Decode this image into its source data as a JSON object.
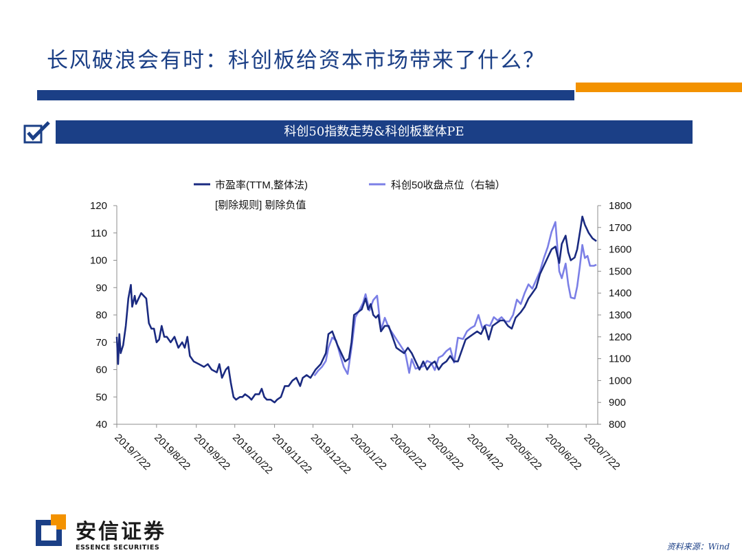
{
  "slide": {
    "title": "长风破浪会有时：科创板给资本市场带来了什么？",
    "subtitle": "科创50指数走势&科创板整体PE",
    "source": "资料来源：Wind",
    "brand_cn": "安信证券",
    "brand_en": "ESSENCE SECURITIES"
  },
  "colors": {
    "brand_blue": "#1b3f86",
    "accent_orange": "#f39200",
    "pe_series": "#1a2a80",
    "index_series": "#7b7fe6"
  },
  "chart_data": {
    "type": "line",
    "legend": {
      "placement": "top",
      "series1": "市盈率(TTM,整体法)",
      "series1_note": "[剔除规则] 剔除负值",
      "series2": "科创50收盘点位（右轴）"
    },
    "x_tick_labels": [
      "2019/7/22",
      "2019/8/22",
      "2019/9/22",
      "2019/10/22",
      "2019/11/22",
      "2019/12/22",
      "2020/1/22",
      "2020/2/22",
      "2020/3/22",
      "2020/4/22",
      "2020/5/22",
      "2020/6/22",
      "2020/7/22"
    ],
    "xlim": [
      "2019-07-22",
      "2020-07-31"
    ],
    "y_left": {
      "ylim": [
        40,
        120
      ],
      "ticks": [
        "120",
        "110",
        "100",
        "90",
        "80",
        "70",
        "60",
        "50",
        "40"
      ]
    },
    "y_right": {
      "ylim": [
        800,
        1800
      ],
      "ticks": [
        "1800",
        "1700",
        "1600",
        "1500",
        "1400",
        "1300",
        "1200",
        "1100",
        "1000",
        "900",
        "800"
      ]
    },
    "grid": false,
    "series": [
      {
        "axis": "left",
        "points": [
          [
            "2019-07-22",
            72
          ],
          [
            "2019-07-23",
            62
          ],
          [
            "2019-07-24",
            73
          ],
          [
            "2019-07-25",
            66
          ],
          [
            "2019-07-27",
            69
          ],
          [
            "2019-07-29",
            76
          ],
          [
            "2019-07-31",
            86
          ],
          [
            "2019-08-02",
            91
          ],
          [
            "2019-08-03",
            83
          ],
          [
            "2019-08-05",
            87
          ],
          [
            "2019-08-06",
            84
          ],
          [
            "2019-08-08",
            86
          ],
          [
            "2019-08-10",
            88
          ],
          [
            "2019-08-12",
            87
          ],
          [
            "2019-08-14",
            86
          ],
          [
            "2019-08-16",
            77
          ],
          [
            "2019-08-18",
            75
          ],
          [
            "2019-08-20",
            75
          ],
          [
            "2019-08-22",
            70
          ],
          [
            "2019-08-24",
            71
          ],
          [
            "2019-08-26",
            76
          ],
          [
            "2019-08-28",
            72
          ],
          [
            "2019-08-30",
            72
          ],
          [
            "2019-09-02",
            70
          ],
          [
            "2019-09-05",
            72
          ],
          [
            "2019-09-08",
            68
          ],
          [
            "2019-09-11",
            70
          ],
          [
            "2019-09-13",
            68
          ],
          [
            "2019-09-15",
            72
          ],
          [
            "2019-09-17",
            65
          ],
          [
            "2019-09-20",
            63
          ],
          [
            "2019-09-24",
            62
          ],
          [
            "2019-09-28",
            61
          ],
          [
            "2019-10-01",
            62
          ],
          [
            "2019-10-04",
            60
          ],
          [
            "2019-10-08",
            59
          ],
          [
            "2019-10-10",
            62
          ],
          [
            "2019-10-12",
            57
          ],
          [
            "2019-10-15",
            60
          ],
          [
            "2019-10-17",
            61
          ],
          [
            "2019-10-19",
            55
          ],
          [
            "2019-10-21",
            50
          ],
          [
            "2019-10-23",
            49
          ],
          [
            "2019-10-26",
            50
          ],
          [
            "2019-10-28",
            50
          ],
          [
            "2019-10-30",
            51
          ],
          [
            "2019-11-02",
            50
          ],
          [
            "2019-11-04",
            49
          ],
          [
            "2019-11-07",
            51
          ],
          [
            "2019-11-10",
            51
          ],
          [
            "2019-11-12",
            53
          ],
          [
            "2019-11-14",
            50
          ],
          [
            "2019-11-16",
            49
          ],
          [
            "2019-11-19",
            49
          ],
          [
            "2019-11-22",
            48
          ],
          [
            "2019-11-24",
            49
          ],
          [
            "2019-11-27",
            50
          ],
          [
            "2019-11-30",
            54
          ],
          [
            "2019-12-03",
            54
          ],
          [
            "2019-12-06",
            56
          ],
          [
            "2019-12-09",
            57
          ],
          [
            "2019-12-12",
            54
          ],
          [
            "2019-12-14",
            57
          ],
          [
            "2019-12-17",
            58
          ],
          [
            "2019-12-20",
            57
          ],
          [
            "2019-12-24",
            60
          ],
          [
            "2019-12-28",
            62
          ],
          [
            "2020-01-01",
            66
          ],
          [
            "2020-01-03",
            73
          ],
          [
            "2020-01-06",
            74
          ],
          [
            "2020-01-10",
            69
          ],
          [
            "2020-01-13",
            66
          ],
          [
            "2020-01-16",
            63
          ],
          [
            "2020-01-19",
            64
          ],
          [
            "2020-01-21",
            70
          ],
          [
            "2020-01-23",
            80
          ],
          [
            "2020-01-26",
            81
          ],
          [
            "2020-01-29",
            82
          ],
          [
            "2020-02-01",
            86
          ],
          [
            "2020-02-03",
            82
          ],
          [
            "2020-02-05",
            84
          ],
          [
            "2020-02-07",
            80
          ],
          [
            "2020-02-09",
            79
          ],
          [
            "2020-02-11",
            80
          ],
          [
            "2020-02-13",
            74
          ],
          [
            "2020-02-16",
            76
          ],
          [
            "2020-02-19",
            76
          ],
          [
            "2020-02-22",
            72
          ],
          [
            "2020-02-25",
            68
          ],
          [
            "2020-02-28",
            67
          ],
          [
            "2020-03-02",
            66
          ],
          [
            "2020-03-05",
            68
          ],
          [
            "2020-03-08",
            66
          ],
          [
            "2020-03-11",
            63
          ],
          [
            "2020-03-14",
            60
          ],
          [
            "2020-03-17",
            63
          ],
          [
            "2020-03-20",
            60
          ],
          [
            "2020-03-23",
            62
          ],
          [
            "2020-03-26",
            63
          ],
          [
            "2020-03-29",
            60
          ],
          [
            "2020-04-01",
            62
          ],
          [
            "2020-04-04",
            63
          ],
          [
            "2020-04-07",
            65
          ],
          [
            "2020-04-10",
            63
          ],
          [
            "2020-04-13",
            63
          ],
          [
            "2020-04-16",
            67
          ],
          [
            "2020-04-19",
            71
          ],
          [
            "2020-04-22",
            72
          ],
          [
            "2020-04-25",
            73
          ],
          [
            "2020-04-28",
            74
          ],
          [
            "2020-05-01",
            73
          ],
          [
            "2020-05-04",
            76
          ],
          [
            "2020-05-07",
            71
          ],
          [
            "2020-05-10",
            76
          ],
          [
            "2020-05-13",
            77
          ],
          [
            "2020-05-16",
            78
          ],
          [
            "2020-05-19",
            78
          ],
          [
            "2020-05-22",
            76
          ],
          [
            "2020-05-25",
            75
          ],
          [
            "2020-05-28",
            79
          ],
          [
            "2020-06-01",
            81
          ],
          [
            "2020-06-04",
            83
          ],
          [
            "2020-06-07",
            86
          ],
          [
            "2020-06-10",
            88
          ],
          [
            "2020-06-13",
            90
          ],
          [
            "2020-06-16",
            95
          ],
          [
            "2020-06-19",
            98
          ],
          [
            "2020-06-22",
            101
          ],
          [
            "2020-06-25",
            104
          ],
          [
            "2020-06-28",
            105
          ],
          [
            "2020-07-01",
            99
          ],
          [
            "2020-07-03",
            106
          ],
          [
            "2020-07-06",
            109
          ],
          [
            "2020-07-08",
            103
          ],
          [
            "2020-07-10",
            100
          ],
          [
            "2020-07-13",
            101
          ],
          [
            "2020-07-15",
            104
          ],
          [
            "2020-07-17",
            110
          ],
          [
            "2020-07-19",
            116
          ],
          [
            "2020-07-21",
            113
          ],
          [
            "2020-07-24",
            110
          ],
          [
            "2020-07-27",
            108
          ],
          [
            "2020-07-30",
            107
          ]
        ]
      },
      {
        "axis": "right",
        "points": [
          [
            "2019-12-23",
            1022
          ],
          [
            "2019-12-26",
            1045
          ],
          [
            "2019-12-29",
            1063
          ],
          [
            "2020-01-01",
            1090
          ],
          [
            "2020-01-03",
            1150
          ],
          [
            "2020-01-06",
            1197
          ],
          [
            "2020-01-09",
            1183
          ],
          [
            "2020-01-12",
            1120
          ],
          [
            "2020-01-15",
            1062
          ],
          [
            "2020-01-18",
            1030
          ],
          [
            "2020-01-21",
            1150
          ],
          [
            "2020-01-24",
            1290
          ],
          [
            "2020-01-27",
            1320
          ],
          [
            "2020-01-30",
            1355
          ],
          [
            "2020-02-01",
            1395
          ],
          [
            "2020-02-04",
            1320
          ],
          [
            "2020-02-07",
            1368
          ],
          [
            "2020-02-10",
            1388
          ],
          [
            "2020-02-13",
            1230
          ],
          [
            "2020-02-16",
            1287
          ],
          [
            "2020-02-19",
            1243
          ],
          [
            "2020-02-23",
            1207
          ],
          [
            "2020-02-26",
            1180
          ],
          [
            "2020-02-29",
            1153
          ],
          [
            "2020-03-03",
            1125
          ],
          [
            "2020-03-06",
            1035
          ],
          [
            "2020-03-08",
            1098
          ],
          [
            "2020-03-11",
            1054
          ],
          [
            "2020-03-14",
            1060
          ],
          [
            "2020-03-17",
            1065
          ],
          [
            "2020-03-20",
            1090
          ],
          [
            "2020-03-23",
            1082
          ],
          [
            "2020-03-26",
            1048
          ],
          [
            "2020-03-29",
            1105
          ],
          [
            "2020-04-01",
            1114
          ],
          [
            "2020-04-04",
            1135
          ],
          [
            "2020-04-07",
            1148
          ],
          [
            "2020-04-10",
            1082
          ],
          [
            "2020-04-13",
            1196
          ],
          [
            "2020-04-17",
            1190
          ],
          [
            "2020-04-20",
            1225
          ],
          [
            "2020-04-23",
            1240
          ],
          [
            "2020-04-26",
            1250
          ],
          [
            "2020-04-29",
            1300
          ],
          [
            "2020-05-02",
            1240
          ],
          [
            "2020-05-05",
            1255
          ],
          [
            "2020-05-08",
            1250
          ],
          [
            "2020-05-11",
            1290
          ],
          [
            "2020-05-14",
            1275
          ],
          [
            "2020-05-17",
            1290
          ],
          [
            "2020-05-20",
            1270
          ],
          [
            "2020-05-23",
            1270
          ],
          [
            "2020-05-26",
            1300
          ],
          [
            "2020-05-29",
            1370
          ],
          [
            "2020-06-01",
            1350
          ],
          [
            "2020-06-04",
            1400
          ],
          [
            "2020-06-07",
            1440
          ],
          [
            "2020-06-10",
            1420
          ],
          [
            "2020-06-13",
            1460
          ],
          [
            "2020-06-16",
            1500
          ],
          [
            "2020-06-19",
            1560
          ],
          [
            "2020-06-22",
            1610
          ],
          [
            "2020-06-25",
            1680
          ],
          [
            "2020-06-28",
            1725
          ],
          [
            "2020-07-01",
            1500
          ],
          [
            "2020-07-03",
            1468
          ],
          [
            "2020-07-06",
            1535
          ],
          [
            "2020-07-08",
            1440
          ],
          [
            "2020-07-10",
            1380
          ],
          [
            "2020-07-13",
            1375
          ],
          [
            "2020-07-15",
            1430
          ],
          [
            "2020-07-17",
            1520
          ],
          [
            "2020-07-19",
            1620
          ],
          [
            "2020-07-21",
            1560
          ],
          [
            "2020-07-23",
            1570
          ],
          [
            "2020-07-25",
            1525
          ],
          [
            "2020-07-28",
            1525
          ],
          [
            "2020-07-30",
            1530
          ]
        ]
      }
    ]
  }
}
